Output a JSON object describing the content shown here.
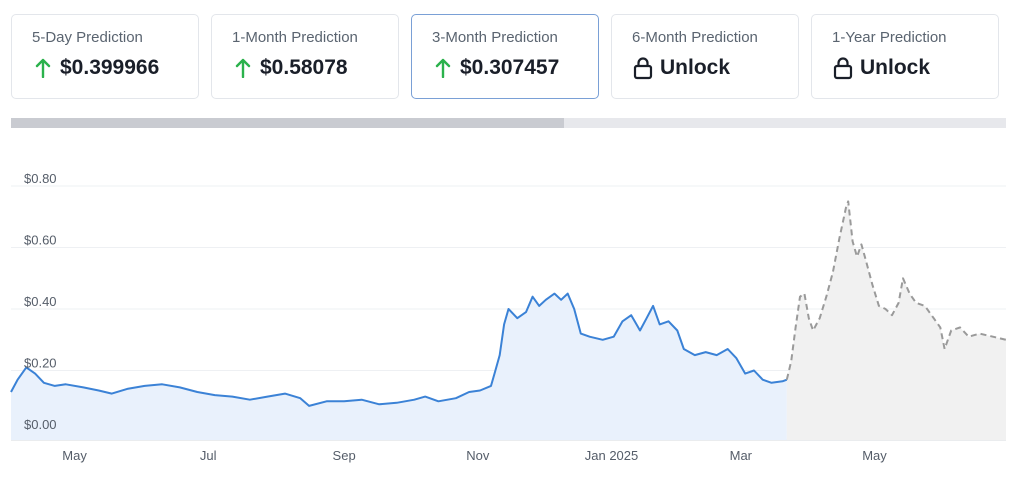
{
  "cards": [
    {
      "label": "5-Day Prediction",
      "value": "$0.399966",
      "icon": "arrow-up-icon"
    },
    {
      "label": "1-Month Prediction",
      "value": "$0.58078",
      "icon": "arrow-up-icon"
    },
    {
      "label": "3-Month Prediction",
      "value": "$0.307457",
      "icon": "arrow-up-icon",
      "active": true
    },
    {
      "label": "6-Month Prediction",
      "value": "Unlock",
      "icon": "lock-icon"
    },
    {
      "label": "1-Year Prediction",
      "value": "Unlock",
      "icon": "lock-icon"
    }
  ],
  "colors": {
    "up_arrow": "#2bb24c",
    "historical_line": "#3b82d6",
    "historical_fill": "#e9f1fc",
    "forecast_line": "#9a9a9a",
    "forecast_fill": "#f1f1f1"
  },
  "chart_data": {
    "type": "area",
    "title": "",
    "xlabel": "",
    "ylabel": "",
    "ylim": [
      0,
      0.8
    ],
    "y_ticks": [
      {
        "value": 0.0,
        "label": "$0.00"
      },
      {
        "value": 0.2,
        "label": "$0.20"
      },
      {
        "value": 0.4,
        "label": "$0.40"
      },
      {
        "value": 0.6,
        "label": "$0.60"
      },
      {
        "value": 0.8,
        "label": "$0.80"
      }
    ],
    "x_range": [
      "2024-04-02",
      "2025-06-30"
    ],
    "x_ticks": [
      {
        "date": "2024-05-01",
        "label": "May"
      },
      {
        "date": "2024-07-01",
        "label": "Jul"
      },
      {
        "date": "2024-09-01",
        "label": "Sep"
      },
      {
        "date": "2024-11-01",
        "label": "Nov"
      },
      {
        "date": "2025-01-01",
        "label": "Jan 2025"
      },
      {
        "date": "2025-03-01",
        "label": "Mar"
      },
      {
        "date": "2025-05-01",
        "label": "May"
      }
    ],
    "grid": true,
    "series": [
      {
        "style": "solid",
        "points": [
          [
            "2024-04-02",
            0.13
          ],
          [
            "2024-04-05",
            0.17
          ],
          [
            "2024-04-09",
            0.21
          ],
          [
            "2024-04-13",
            0.19
          ],
          [
            "2024-04-17",
            0.16
          ],
          [
            "2024-04-22",
            0.15
          ],
          [
            "2024-04-27",
            0.155
          ],
          [
            "2024-05-05",
            0.145
          ],
          [
            "2024-05-12",
            0.135
          ],
          [
            "2024-05-18",
            0.125
          ],
          [
            "2024-05-25",
            0.14
          ],
          [
            "2024-06-02",
            0.15
          ],
          [
            "2024-06-10",
            0.155
          ],
          [
            "2024-06-18",
            0.145
          ],
          [
            "2024-06-26",
            0.13
          ],
          [
            "2024-07-04",
            0.12
          ],
          [
            "2024-07-12",
            0.115
          ],
          [
            "2024-07-20",
            0.105
          ],
          [
            "2024-07-28",
            0.115
          ],
          [
            "2024-08-05",
            0.125
          ],
          [
            "2024-08-12",
            0.11
          ],
          [
            "2024-08-16",
            0.085
          ],
          [
            "2024-08-24",
            0.1
          ],
          [
            "2024-09-01",
            0.1
          ],
          [
            "2024-09-09",
            0.105
          ],
          [
            "2024-09-17",
            0.09
          ],
          [
            "2024-09-25",
            0.095
          ],
          [
            "2024-10-03",
            0.105
          ],
          [
            "2024-10-08",
            0.115
          ],
          [
            "2024-10-14",
            0.1
          ],
          [
            "2024-10-22",
            0.11
          ],
          [
            "2024-10-28",
            0.13
          ],
          [
            "2024-11-02",
            0.135
          ],
          [
            "2024-11-07",
            0.15
          ],
          [
            "2024-11-09",
            0.2
          ],
          [
            "2024-11-11",
            0.25
          ],
          [
            "2024-11-13",
            0.35
          ],
          [
            "2024-11-15",
            0.4
          ],
          [
            "2024-11-19",
            0.37
          ],
          [
            "2024-11-23",
            0.39
          ],
          [
            "2024-11-26",
            0.44
          ],
          [
            "2024-11-29",
            0.41
          ],
          [
            "2024-12-02",
            0.43
          ],
          [
            "2024-12-06",
            0.45
          ],
          [
            "2024-12-09",
            0.43
          ],
          [
            "2024-12-12",
            0.45
          ],
          [
            "2024-12-15",
            0.4
          ],
          [
            "2024-12-18",
            0.32
          ],
          [
            "2024-12-22",
            0.31
          ],
          [
            "2024-12-28",
            0.3
          ],
          [
            "2025-01-02",
            0.31
          ],
          [
            "2025-01-06",
            0.36
          ],
          [
            "2025-01-10",
            0.38
          ],
          [
            "2025-01-14",
            0.33
          ],
          [
            "2025-01-17",
            0.37
          ],
          [
            "2025-01-20",
            0.41
          ],
          [
            "2025-01-23",
            0.35
          ],
          [
            "2025-01-27",
            0.36
          ],
          [
            "2025-01-31",
            0.33
          ],
          [
            "2025-02-03",
            0.27
          ],
          [
            "2025-02-08",
            0.25
          ],
          [
            "2025-02-13",
            0.26
          ],
          [
            "2025-02-18",
            0.25
          ],
          [
            "2025-02-23",
            0.27
          ],
          [
            "2025-02-27",
            0.24
          ],
          [
            "2025-03-03",
            0.19
          ],
          [
            "2025-03-07",
            0.2
          ],
          [
            "2025-03-11",
            0.17
          ],
          [
            "2025-03-15",
            0.16
          ],
          [
            "2025-03-20",
            0.165
          ],
          [
            "2025-03-22",
            0.17
          ]
        ]
      },
      {
        "style": "dashed",
        "points": [
          [
            "2025-03-22",
            0.17
          ],
          [
            "2025-03-24",
            0.23
          ],
          [
            "2025-03-26",
            0.34
          ],
          [
            "2025-03-28",
            0.44
          ],
          [
            "2025-03-30",
            0.45
          ],
          [
            "2025-04-01",
            0.37
          ],
          [
            "2025-04-03",
            0.33
          ],
          [
            "2025-04-06",
            0.37
          ],
          [
            "2025-04-09",
            0.44
          ],
          [
            "2025-04-12",
            0.52
          ],
          [
            "2025-04-15",
            0.63
          ],
          [
            "2025-04-18",
            0.73
          ],
          [
            "2025-04-19",
            0.75
          ],
          [
            "2025-04-21",
            0.62
          ],
          [
            "2025-04-23",
            0.57
          ],
          [
            "2025-04-25",
            0.61
          ],
          [
            "2025-04-27",
            0.56
          ],
          [
            "2025-04-30",
            0.48
          ],
          [
            "2025-05-03",
            0.41
          ],
          [
            "2025-05-06",
            0.4
          ],
          [
            "2025-05-09",
            0.38
          ],
          [
            "2025-05-12",
            0.42
          ],
          [
            "2025-05-14",
            0.5
          ],
          [
            "2025-05-17",
            0.45
          ],
          [
            "2025-05-20",
            0.42
          ],
          [
            "2025-05-24",
            0.41
          ],
          [
            "2025-05-28",
            0.37
          ],
          [
            "2025-05-31",
            0.34
          ],
          [
            "2025-06-02",
            0.27
          ],
          [
            "2025-06-05",
            0.33
          ],
          [
            "2025-06-09",
            0.34
          ],
          [
            "2025-06-13",
            0.31
          ],
          [
            "2025-06-18",
            0.32
          ],
          [
            "2025-06-24",
            0.31
          ],
          [
            "2025-06-30",
            0.3
          ]
        ]
      }
    ]
  }
}
